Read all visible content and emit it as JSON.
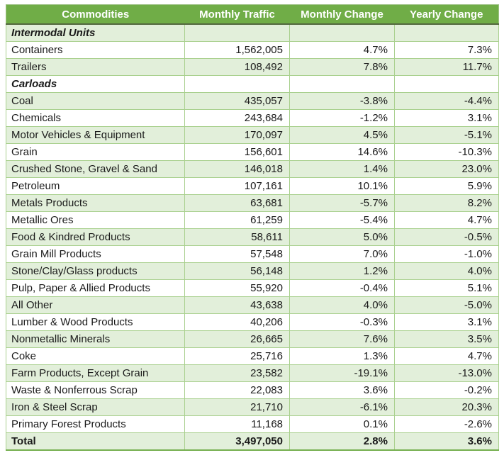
{
  "colors": {
    "header_bg": "#70AD47",
    "header_text": "#FFFFFF",
    "band_green": "#E2EFDA",
    "grid_line": "#A9D08E",
    "header_underline": "#53683F",
    "bottom_border": "#76B050",
    "body_text": "#1A1A1A"
  },
  "table": {
    "columns": [
      "Commodities",
      "Monthly Traffic",
      "Monthly Change",
      "Yearly Change"
    ],
    "rows": [
      {
        "label": "Intermodal Units",
        "traffic": "",
        "monthly": "",
        "yearly": "",
        "style": "section"
      },
      {
        "label": "Containers",
        "traffic": "1,562,005",
        "monthly": "4.7%",
        "yearly": "7.3%",
        "style": "data"
      },
      {
        "label": "Trailers",
        "traffic": "108,492",
        "monthly": "7.8%",
        "yearly": "11.7%",
        "style": "data"
      },
      {
        "label": "Carloads",
        "traffic": "",
        "monthly": "",
        "yearly": "",
        "style": "section"
      },
      {
        "label": "Coal",
        "traffic": "435,057",
        "monthly": "-3.8%",
        "yearly": "-4.4%",
        "style": "data"
      },
      {
        "label": "Chemicals",
        "traffic": "243,684",
        "monthly": "-1.2%",
        "yearly": "3.1%",
        "style": "data"
      },
      {
        "label": "Motor Vehicles & Equipment",
        "traffic": "170,097",
        "monthly": "4.5%",
        "yearly": "-5.1%",
        "style": "data"
      },
      {
        "label": "Grain",
        "traffic": "156,601",
        "monthly": "14.6%",
        "yearly": "-10.3%",
        "style": "data"
      },
      {
        "label": "Crushed Stone, Gravel & Sand",
        "traffic": "146,018",
        "monthly": "1.4%",
        "yearly": "23.0%",
        "style": "data"
      },
      {
        "label": "Petroleum",
        "traffic": "107,161",
        "monthly": "10.1%",
        "yearly": "5.9%",
        "style": "data"
      },
      {
        "label": "Metals Products",
        "traffic": "63,681",
        "monthly": "-5.7%",
        "yearly": "8.2%",
        "style": "data"
      },
      {
        "label": "Metallic Ores",
        "traffic": "61,259",
        "monthly": "-5.4%",
        "yearly": "4.7%",
        "style": "data"
      },
      {
        "label": "Food & Kindred Products",
        "traffic": "58,611",
        "monthly": "5.0%",
        "yearly": "-0.5%",
        "style": "data"
      },
      {
        "label": "Grain Mill Products",
        "traffic": "57,548",
        "monthly": "7.0%",
        "yearly": "-1.0%",
        "style": "data"
      },
      {
        "label": "Stone/Clay/Glass products",
        "traffic": "56,148",
        "monthly": "1.2%",
        "yearly": "4.0%",
        "style": "data"
      },
      {
        "label": "Pulp, Paper & Allied Products",
        "traffic": "55,920",
        "monthly": "-0.4%",
        "yearly": "5.1%",
        "style": "data"
      },
      {
        "label": "All Other",
        "traffic": "43,638",
        "monthly": "4.0%",
        "yearly": "-5.0%",
        "style": "data"
      },
      {
        "label": "Lumber & Wood Products",
        "traffic": "40,206",
        "monthly": "-0.3%",
        "yearly": "3.1%",
        "style": "data"
      },
      {
        "label": "Nonmetallic Minerals",
        "traffic": "26,665",
        "monthly": "7.6%",
        "yearly": "3.5%",
        "style": "data"
      },
      {
        "label": "Coke",
        "traffic": "25,716",
        "monthly": "1.3%",
        "yearly": "4.7%",
        "style": "data"
      },
      {
        "label": "Farm Products, Except Grain",
        "traffic": "23,582",
        "monthly": "-19.1%",
        "yearly": "-13.0%",
        "style": "data"
      },
      {
        "label": "Waste & Nonferrous Scrap",
        "traffic": "22,083",
        "monthly": "3.6%",
        "yearly": "-0.2%",
        "style": "data"
      },
      {
        "label": "Iron & Steel Scrap",
        "traffic": "21,710",
        "monthly": "-6.1%",
        "yearly": "20.3%",
        "style": "data"
      },
      {
        "label": "Primary Forest Products",
        "traffic": "11,168",
        "monthly": "0.1%",
        "yearly": "-2.6%",
        "style": "data"
      },
      {
        "label": "Total",
        "traffic": "3,497,050",
        "monthly": "2.8%",
        "yearly": "3.6%",
        "style": "total"
      }
    ]
  },
  "chart_data": {
    "type": "table",
    "columns": [
      "Commodities",
      "Monthly Traffic",
      "Monthly Change",
      "Yearly Change"
    ],
    "sections": [
      {
        "name": "Intermodal Units",
        "rows": [
          {
            "commodity": "Containers",
            "monthly_traffic": 1562005,
            "monthly_change_pct": 4.7,
            "yearly_change_pct": 7.3
          },
          {
            "commodity": "Trailers",
            "monthly_traffic": 108492,
            "monthly_change_pct": 7.8,
            "yearly_change_pct": 11.7
          }
        ]
      },
      {
        "name": "Carloads",
        "rows": [
          {
            "commodity": "Coal",
            "monthly_traffic": 435057,
            "monthly_change_pct": -3.8,
            "yearly_change_pct": -4.4
          },
          {
            "commodity": "Chemicals",
            "monthly_traffic": 243684,
            "monthly_change_pct": -1.2,
            "yearly_change_pct": 3.1
          },
          {
            "commodity": "Motor Vehicles & Equipment",
            "monthly_traffic": 170097,
            "monthly_change_pct": 4.5,
            "yearly_change_pct": -5.1
          },
          {
            "commodity": "Grain",
            "monthly_traffic": 156601,
            "monthly_change_pct": 14.6,
            "yearly_change_pct": -10.3
          },
          {
            "commodity": "Crushed Stone, Gravel & Sand",
            "monthly_traffic": 146018,
            "monthly_change_pct": 1.4,
            "yearly_change_pct": 23.0
          },
          {
            "commodity": "Petroleum",
            "monthly_traffic": 107161,
            "monthly_change_pct": 10.1,
            "yearly_change_pct": 5.9
          },
          {
            "commodity": "Metals Products",
            "monthly_traffic": 63681,
            "monthly_change_pct": -5.7,
            "yearly_change_pct": 8.2
          },
          {
            "commodity": "Metallic Ores",
            "monthly_traffic": 61259,
            "monthly_change_pct": -5.4,
            "yearly_change_pct": 4.7
          },
          {
            "commodity": "Food & Kindred Products",
            "monthly_traffic": 58611,
            "monthly_change_pct": 5.0,
            "yearly_change_pct": -0.5
          },
          {
            "commodity": "Grain Mill Products",
            "monthly_traffic": 57548,
            "monthly_change_pct": 7.0,
            "yearly_change_pct": -1.0
          },
          {
            "commodity": "Stone/Clay/Glass products",
            "monthly_traffic": 56148,
            "monthly_change_pct": 1.2,
            "yearly_change_pct": 4.0
          },
          {
            "commodity": "Pulp, Paper & Allied Products",
            "monthly_traffic": 55920,
            "monthly_change_pct": -0.4,
            "yearly_change_pct": 5.1
          },
          {
            "commodity": "All Other",
            "monthly_traffic": 43638,
            "monthly_change_pct": 4.0,
            "yearly_change_pct": -5.0
          },
          {
            "commodity": "Lumber & Wood Products",
            "monthly_traffic": 40206,
            "monthly_change_pct": -0.3,
            "yearly_change_pct": 3.1
          },
          {
            "commodity": "Nonmetallic Minerals",
            "monthly_traffic": 26665,
            "monthly_change_pct": 7.6,
            "yearly_change_pct": 3.5
          },
          {
            "commodity": "Coke",
            "monthly_traffic": 25716,
            "monthly_change_pct": 1.3,
            "yearly_change_pct": 4.7
          },
          {
            "commodity": "Farm Products, Except Grain",
            "monthly_traffic": 23582,
            "monthly_change_pct": -19.1,
            "yearly_change_pct": -13.0
          },
          {
            "commodity": "Waste & Nonferrous Scrap",
            "monthly_traffic": 22083,
            "monthly_change_pct": 3.6,
            "yearly_change_pct": -0.2
          },
          {
            "commodity": "Iron & Steel Scrap",
            "monthly_traffic": 21710,
            "monthly_change_pct": -6.1,
            "yearly_change_pct": 20.3
          },
          {
            "commodity": "Primary Forest Products",
            "monthly_traffic": 11168,
            "monthly_change_pct": 0.1,
            "yearly_change_pct": -2.6
          }
        ]
      }
    ],
    "total": {
      "commodity": "Total",
      "monthly_traffic": 3497050,
      "monthly_change_pct": 2.8,
      "yearly_change_pct": 3.6
    }
  }
}
